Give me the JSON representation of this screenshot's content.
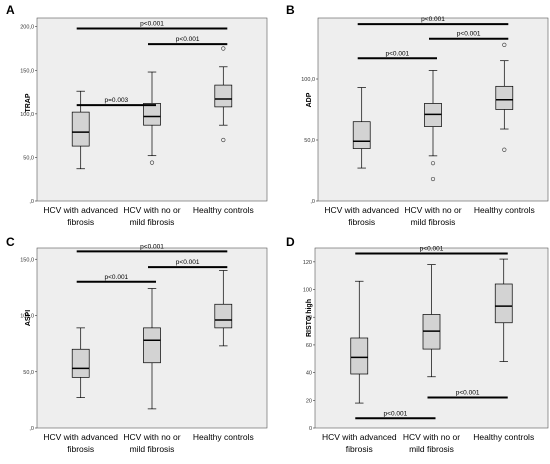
{
  "figure": {
    "background": "#ffffff",
    "plot_background": "#eeeeee",
    "box_fill": "#d3d3d3",
    "line_color": "#000000"
  },
  "chart_data": [
    {
      "panel": "A",
      "type": "box",
      "ylabel": "TRAP",
      "ylim": [
        0,
        210
      ],
      "yticks": [
        0,
        50,
        100,
        150,
        200
      ],
      "ytick_labels": [
        ",0",
        "50,0",
        "100,0",
        "150,0",
        "200,0"
      ],
      "categories": [
        "HCV with advanced fibrosis",
        "HCV with no or mild fibrosis",
        "Healthy controls"
      ],
      "category_lines": [
        [
          "HCV with advanced",
          "fibrosis"
        ],
        [
          "HCV with no or",
          "mild fibrosis"
        ],
        [
          "Healthy controls"
        ]
      ],
      "boxes": [
        {
          "whisker_low": 37,
          "q1": 63,
          "median": 79,
          "q3": 102,
          "whisker_high": 126,
          "outliers": []
        },
        {
          "whisker_low": 52,
          "q1": 87,
          "median": 97,
          "q3": 112,
          "whisker_high": 148,
          "outliers": [
            44
          ]
        },
        {
          "whisker_low": 87,
          "q1": 108,
          "median": 117,
          "q3": 133,
          "whisker_high": 154,
          "outliers": [
            70,
            175
          ]
        }
      ],
      "comparisons": [
        {
          "from": 0,
          "to": 1,
          "y": 110,
          "label": "p=0.003"
        },
        {
          "from": 1,
          "to": 2,
          "y": 180,
          "label": "p<0.001"
        },
        {
          "from": 0,
          "to": 2,
          "y": 198,
          "label": "p<0.001"
        }
      ]
    },
    {
      "panel": "B",
      "type": "box",
      "ylabel": "ADP",
      "ylim": [
        0,
        150
      ],
      "yticks": [
        0,
        50,
        100
      ],
      "ytick_labels": [
        ",0",
        "50,0",
        "100,0"
      ],
      "categories": [
        "HCV with advanced fibrosis",
        "HCV with no or mild fibrosis",
        "Healthy controls"
      ],
      "category_lines": [
        [
          "HCV with advanced",
          "fibrosis"
        ],
        [
          "HCV with no or",
          "mild fibrosis"
        ],
        [
          "Healthy controls"
        ]
      ],
      "boxes": [
        {
          "whisker_low": 27,
          "q1": 43,
          "median": 49,
          "q3": 65,
          "whisker_high": 93,
          "outliers": []
        },
        {
          "whisker_low": 37,
          "q1": 61,
          "median": 71,
          "q3": 80,
          "whisker_high": 107,
          "outliers": [
            31,
            18
          ]
        },
        {
          "whisker_low": 59,
          "q1": 75,
          "median": 83,
          "q3": 94,
          "whisker_high": 115,
          "outliers": [
            42,
            128
          ]
        }
      ],
      "comparisons": [
        {
          "from": 0,
          "to": 1,
          "y": 117,
          "label": "p<0.001"
        },
        {
          "from": 1,
          "to": 2,
          "y": 133,
          "label": "p<0.001"
        },
        {
          "from": 0,
          "to": 2,
          "y": 145,
          "label": "p<0.001"
        }
      ]
    },
    {
      "panel": "C",
      "type": "box",
      "ylabel": "ASPI",
      "ylim": [
        0,
        160
      ],
      "yticks": [
        0,
        50,
        100,
        150
      ],
      "ytick_labels": [
        ",0",
        "50,0",
        "100,0",
        "150,0"
      ],
      "categories": [
        "HCV with advanced fibrosis",
        "HCV with no or mild fibrosis",
        "Healthy controls"
      ],
      "category_lines": [
        [
          "HCV with advanced",
          "fibrosis"
        ],
        [
          "HCV with no or",
          "mild fibrosis"
        ],
        [
          "Healthy controls"
        ]
      ],
      "boxes": [
        {
          "whisker_low": 27,
          "q1": 45,
          "median": 53,
          "q3": 70,
          "whisker_high": 89,
          "outliers": []
        },
        {
          "whisker_low": 17,
          "q1": 58,
          "median": 78,
          "q3": 89,
          "whisker_high": 124,
          "outliers": []
        },
        {
          "whisker_low": 73,
          "q1": 89,
          "median": 96,
          "q3": 110,
          "whisker_high": 140,
          "outliers": []
        }
      ],
      "comparisons": [
        {
          "from": 0,
          "to": 1,
          "y": 130,
          "label": "p<0.001"
        },
        {
          "from": 1,
          "to": 2,
          "y": 143,
          "label": "p<0.001"
        },
        {
          "from": 0,
          "to": 2,
          "y": 157,
          "label": "p<0.001"
        }
      ]
    },
    {
      "panel": "D",
      "type": "box",
      "ylabel": "RISTO high",
      "ylim": [
        0,
        130
      ],
      "yticks": [
        0,
        20,
        40,
        60,
        80,
        100,
        120
      ],
      "ytick_labels": [
        "0",
        "20",
        "40",
        "60",
        "80",
        "100",
        "120"
      ],
      "categories": [
        "HCV with advanced fibrosis",
        "HCV with no or mild fibrosis",
        "Healthy controls"
      ],
      "category_lines": [
        [
          "HCV with advanced",
          "fibrosis"
        ],
        [
          "HCV with no or",
          "mild fibrosis"
        ],
        [
          "Healthy controls"
        ]
      ],
      "boxes": [
        {
          "whisker_low": 18,
          "q1": 39,
          "median": 51,
          "q3": 65,
          "whisker_high": 106,
          "outliers": []
        },
        {
          "whisker_low": 37,
          "q1": 57,
          "median": 70,
          "q3": 82,
          "whisker_high": 118,
          "outliers": []
        },
        {
          "whisker_low": 48,
          "q1": 76,
          "median": 88,
          "q3": 104,
          "whisker_high": 122,
          "outliers": []
        }
      ],
      "comparisons": [
        {
          "from": 0,
          "to": 1,
          "y": 7,
          "label": "p<0.001"
        },
        {
          "from": 1,
          "to": 2,
          "y": 22,
          "label": "p<0.001"
        },
        {
          "from": 0,
          "to": 2,
          "y": 126,
          "label": "p<0.001"
        }
      ]
    }
  ]
}
